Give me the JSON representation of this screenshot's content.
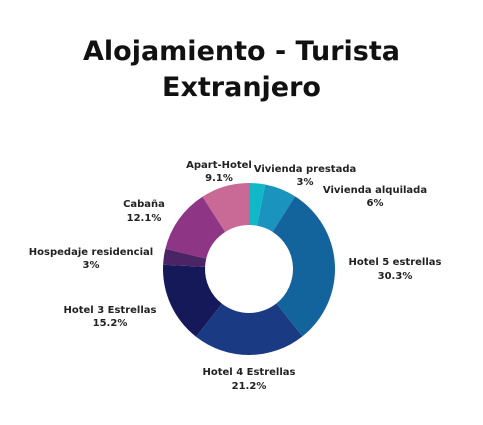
{
  "title_line1": "Alojamiento - Turista",
  "title_line2": "Extranjero",
  "chart_data": {
    "type": "pie",
    "donut": true,
    "categories": [
      "Apart-Hotel",
      "Vivienda prestada",
      "Vivienda alquilada",
      "Hotel 5 estrellas",
      "Hotel 4 Estrellas",
      "Hotel 3 Estrellas",
      "Hospedaje residencial",
      "Cabaña"
    ],
    "values": [
      9.1,
      3,
      6,
      30.3,
      21.2,
      15.2,
      3,
      12.1
    ],
    "labels": [
      "9.1%",
      "3%",
      "6%",
      "30.3%",
      "21.2%",
      "15.2%",
      "3%",
      "12.1%"
    ],
    "colors": [
      "#c96a96",
      "#10b7c9",
      "#1a93be",
      "#13649d",
      "#1a3a83",
      "#15195a",
      "#4b2465",
      "#8f3586"
    ],
    "legend": "none"
  }
}
